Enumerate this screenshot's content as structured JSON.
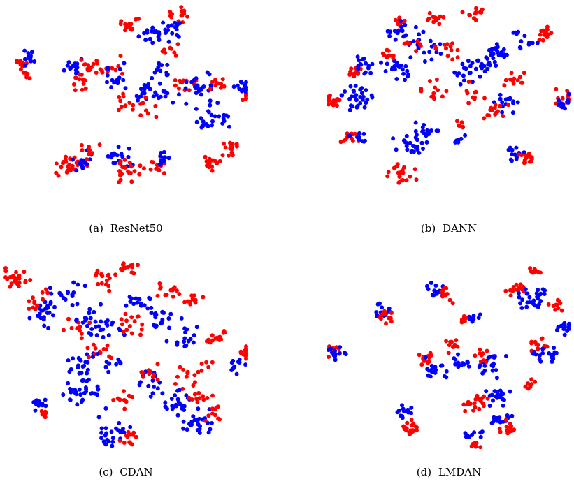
{
  "colors": {
    "source": "#ff0000",
    "target": "#0000ff"
  },
  "chart_data": [
    {
      "type": "scatter",
      "tag": "(a)",
      "title": "ResNet50",
      "clusters": [
        {
          "series": "red",
          "cx": 6,
          "cy": 30,
          "n": 10,
          "spread": 3
        },
        {
          "series": "red",
          "cx": 9,
          "cy": 35,
          "n": 8,
          "spread": 3
        },
        {
          "series": "blue",
          "cx": 10,
          "cy": 27,
          "n": 12,
          "spread": 3
        },
        {
          "series": "blue",
          "cx": 28,
          "cy": 32,
          "n": 18,
          "spread": 3
        },
        {
          "series": "red",
          "cx": 30,
          "cy": 40,
          "n": 12,
          "spread": 3
        },
        {
          "series": "red",
          "cx": 27,
          "cy": 84,
          "n": 25,
          "spread": 4
        },
        {
          "series": "blue",
          "cx": 33,
          "cy": 80,
          "n": 15,
          "spread": 4
        },
        {
          "series": "red",
          "cx": 34,
          "cy": 75,
          "n": 10,
          "spread": 4
        },
        {
          "series": "blue",
          "cx": 47,
          "cy": 80,
          "n": 18,
          "spread": 4
        },
        {
          "series": "red",
          "cx": 50,
          "cy": 88,
          "n": 20,
          "spread": 4
        },
        {
          "series": "red",
          "cx": 62,
          "cy": 84,
          "n": 12,
          "spread": 3
        },
        {
          "series": "blue",
          "cx": 65,
          "cy": 80,
          "n": 12,
          "spread": 3
        },
        {
          "series": "red",
          "cx": 35,
          "cy": 32,
          "n": 12,
          "spread": 3
        },
        {
          "series": "red",
          "cx": 44,
          "cy": 33,
          "n": 10,
          "spread": 4
        },
        {
          "series": "blue",
          "cx": 46,
          "cy": 38,
          "n": 15,
          "spread": 5
        },
        {
          "series": "red",
          "cx": 50,
          "cy": 50,
          "n": 10,
          "spread": 4
        },
        {
          "series": "blue",
          "cx": 60,
          "cy": 45,
          "n": 28,
          "spread": 6
        },
        {
          "series": "red",
          "cx": 58,
          "cy": 55,
          "n": 8,
          "spread": 5
        },
        {
          "series": "red",
          "cx": 52,
          "cy": 10,
          "n": 15,
          "spread": 3
        },
        {
          "series": "blue",
          "cx": 62,
          "cy": 15,
          "n": 20,
          "spread": 5
        },
        {
          "series": "red",
          "cx": 72,
          "cy": 5,
          "n": 15,
          "spread": 3
        },
        {
          "series": "blue",
          "cx": 70,
          "cy": 12,
          "n": 15,
          "spread": 3
        },
        {
          "series": "red",
          "cx": 70,
          "cy": 22,
          "n": 8,
          "spread": 3
        },
        {
          "series": "blue",
          "cx": 65,
          "cy": 35,
          "n": 10,
          "spread": 4
        },
        {
          "series": "red",
          "cx": 75,
          "cy": 40,
          "n": 15,
          "spread": 4
        },
        {
          "series": "blue",
          "cx": 80,
          "cy": 43,
          "n": 25,
          "spread": 5
        },
        {
          "series": "red",
          "cx": 88,
          "cy": 40,
          "n": 10,
          "spread": 3
        },
        {
          "series": "blue",
          "cx": 85,
          "cy": 58,
          "n": 28,
          "spread": 6
        },
        {
          "series": "red",
          "cx": 93,
          "cy": 74,
          "n": 15,
          "spread": 3
        },
        {
          "series": "red",
          "cx": 85,
          "cy": 82,
          "n": 15,
          "spread": 3
        },
        {
          "series": "red",
          "cx": 101,
          "cy": 45,
          "n": 15,
          "spread": 3
        },
        {
          "series": "blue",
          "cx": 98,
          "cy": 43,
          "n": 12,
          "spread": 3
        }
      ]
    },
    {
      "type": "scatter",
      "tag": "(b)",
      "title": "DANN",
      "clusters": [
        {
          "series": "red",
          "cx": 2,
          "cy": 50,
          "n": 20,
          "spread": 3
        },
        {
          "series": "blue",
          "cx": 12,
          "cy": 48,
          "n": 30,
          "spread": 5
        },
        {
          "series": "red",
          "cx": 12,
          "cy": 35,
          "n": 12,
          "spread": 3
        },
        {
          "series": "blue",
          "cx": 15,
          "cy": 30,
          "n": 15,
          "spread": 4
        },
        {
          "series": "red",
          "cx": 10,
          "cy": 68,
          "n": 15,
          "spread": 3
        },
        {
          "series": "blue",
          "cx": 12,
          "cy": 70,
          "n": 10,
          "spread": 3
        },
        {
          "series": "blue",
          "cx": 28,
          "cy": 33,
          "n": 20,
          "spread": 4
        },
        {
          "series": "red",
          "cx": 25,
          "cy": 25,
          "n": 10,
          "spread": 3
        },
        {
          "series": "red",
          "cx": 30,
          "cy": 8,
          "n": 10,
          "spread": 3
        },
        {
          "series": "blue",
          "cx": 30,
          "cy": 14,
          "n": 15,
          "spread": 4
        },
        {
          "series": "red",
          "cx": 45,
          "cy": 7,
          "n": 12,
          "spread": 3
        },
        {
          "series": "blue",
          "cx": 40,
          "cy": 22,
          "n": 20,
          "spread": 5
        },
        {
          "series": "red",
          "cx": 35,
          "cy": 20,
          "n": 8,
          "spread": 3
        },
        {
          "series": "red",
          "cx": 60,
          "cy": 5,
          "n": 12,
          "spread": 3
        },
        {
          "series": "red",
          "cx": 50,
          "cy": 24,
          "n": 12,
          "spread": 4
        },
        {
          "series": "blue",
          "cx": 58,
          "cy": 35,
          "n": 20,
          "spread": 5
        },
        {
          "series": "red",
          "cx": 45,
          "cy": 45,
          "n": 12,
          "spread": 5
        },
        {
          "series": "red",
          "cx": 60,
          "cy": 48,
          "n": 10,
          "spread": 5
        },
        {
          "series": "blue",
          "cx": 65,
          "cy": 30,
          "n": 15,
          "spread": 4
        },
        {
          "series": "blue",
          "cx": 35,
          "cy": 72,
          "n": 25,
          "spread": 5
        },
        {
          "series": "red",
          "cx": 30,
          "cy": 88,
          "n": 25,
          "spread": 4
        },
        {
          "series": "blue",
          "cx": 40,
          "cy": 65,
          "n": 15,
          "spread": 4
        },
        {
          "series": "red",
          "cx": 55,
          "cy": 62,
          "n": 6,
          "spread": 2
        },
        {
          "series": "blue",
          "cx": 55,
          "cy": 70,
          "n": 6,
          "spread": 2
        },
        {
          "series": "blue",
          "cx": 70,
          "cy": 25,
          "n": 20,
          "spread": 4
        },
        {
          "series": "red",
          "cx": 78,
          "cy": 38,
          "n": 12,
          "spread": 3
        },
        {
          "series": "red",
          "cx": 90,
          "cy": 15,
          "n": 15,
          "spread": 3
        },
        {
          "series": "blue",
          "cx": 82,
          "cy": 18,
          "n": 15,
          "spread": 4
        },
        {
          "series": "blue",
          "cx": 74,
          "cy": 50,
          "n": 15,
          "spread": 4
        },
        {
          "series": "red",
          "cx": 70,
          "cy": 55,
          "n": 15,
          "spread": 4
        },
        {
          "series": "blue",
          "cx": 78,
          "cy": 78,
          "n": 15,
          "spread": 3
        },
        {
          "series": "red",
          "cx": 83,
          "cy": 80,
          "n": 15,
          "spread": 3
        },
        {
          "series": "red",
          "cx": 97,
          "cy": 48,
          "n": 12,
          "spread": 3
        },
        {
          "series": "blue",
          "cx": 98,
          "cy": 50,
          "n": 10,
          "spread": 3
        }
      ]
    },
    {
      "type": "scatter",
      "tag": "(c)",
      "title": "CDAN",
      "clusters": [
        {
          "series": "red",
          "cx": 4,
          "cy": 10,
          "n": 25,
          "spread": 4
        },
        {
          "series": "blue",
          "cx": 17,
          "cy": 28,
          "n": 25,
          "spread": 5
        },
        {
          "series": "red",
          "cx": 13,
          "cy": 20,
          "n": 12,
          "spread": 4
        },
        {
          "series": "blue",
          "cx": 26,
          "cy": 18,
          "n": 15,
          "spread": 5
        },
        {
          "series": "red",
          "cx": 30,
          "cy": 35,
          "n": 12,
          "spread": 5
        },
        {
          "series": "blue",
          "cx": 35,
          "cy": 30,
          "n": 20,
          "spread": 6
        },
        {
          "series": "red",
          "cx": 42,
          "cy": 12,
          "n": 15,
          "spread": 4
        },
        {
          "series": "blue",
          "cx": 42,
          "cy": 38,
          "n": 15,
          "spread": 5
        },
        {
          "series": "red",
          "cx": 50,
          "cy": 5,
          "n": 15,
          "spread": 3
        },
        {
          "series": "blue",
          "cx": 55,
          "cy": 25,
          "n": 15,
          "spread": 5
        },
        {
          "series": "red",
          "cx": 52,
          "cy": 35,
          "n": 15,
          "spread": 5
        },
        {
          "series": "blue",
          "cx": 65,
          "cy": 30,
          "n": 20,
          "spread": 5
        },
        {
          "series": "red",
          "cx": 68,
          "cy": 15,
          "n": 12,
          "spread": 4
        },
        {
          "series": "red",
          "cx": 78,
          "cy": 22,
          "n": 12,
          "spread": 4
        },
        {
          "series": "blue",
          "cx": 75,
          "cy": 40,
          "n": 15,
          "spread": 5
        },
        {
          "series": "red",
          "cx": 88,
          "cy": 40,
          "n": 15,
          "spread": 4
        },
        {
          "series": "red",
          "cx": 100,
          "cy": 48,
          "n": 15,
          "spread": 3
        },
        {
          "series": "blue",
          "cx": 96,
          "cy": 55,
          "n": 12,
          "spread": 3
        },
        {
          "series": "blue",
          "cx": 30,
          "cy": 55,
          "n": 20,
          "spread": 5
        },
        {
          "series": "red",
          "cx": 38,
          "cy": 48,
          "n": 12,
          "spread": 4
        },
        {
          "series": "blue",
          "cx": 42,
          "cy": 55,
          "n": 12,
          "spread": 4
        },
        {
          "series": "blue",
          "cx": 32,
          "cy": 70,
          "n": 30,
          "spread": 6
        },
        {
          "series": "red",
          "cx": 48,
          "cy": 72,
          "n": 10,
          "spread": 4
        },
        {
          "series": "blue",
          "cx": 14,
          "cy": 75,
          "n": 12,
          "spread": 3
        },
        {
          "series": "red",
          "cx": 16,
          "cy": 80,
          "n": 6,
          "spread": 2
        },
        {
          "series": "blue",
          "cx": 45,
          "cy": 90,
          "n": 25,
          "spread": 5
        },
        {
          "series": "red",
          "cx": 52,
          "cy": 93,
          "n": 12,
          "spread": 3
        },
        {
          "series": "blue",
          "cx": 62,
          "cy": 65,
          "n": 15,
          "spread": 5
        },
        {
          "series": "red",
          "cx": 60,
          "cy": 60,
          "n": 10,
          "spread": 4
        },
        {
          "series": "red",
          "cx": 75,
          "cy": 62,
          "n": 12,
          "spread": 4
        },
        {
          "series": "blue",
          "cx": 72,
          "cy": 75,
          "n": 25,
          "spread": 5
        },
        {
          "series": "red",
          "cx": 82,
          "cy": 70,
          "n": 12,
          "spread": 4
        },
        {
          "series": "blue",
          "cx": 80,
          "cy": 85,
          "n": 25,
          "spread": 5
        },
        {
          "series": "red",
          "cx": 88,
          "cy": 80,
          "n": 10,
          "spread": 4
        },
        {
          "series": "red",
          "cx": 82,
          "cy": 55,
          "n": 6,
          "spread": 3
        }
      ]
    },
    {
      "type": "scatter",
      "tag": "(d)",
      "title": "LMDAN",
      "clusters": [
        {
          "series": "red",
          "cx": 2,
          "cy": 47,
          "n": 12,
          "spread": 3
        },
        {
          "series": "blue",
          "cx": 4,
          "cy": 49,
          "n": 12,
          "spread": 3
        },
        {
          "series": "blue",
          "cx": 22,
          "cy": 27,
          "n": 15,
          "spread": 3
        },
        {
          "series": "red",
          "cx": 23,
          "cy": 30,
          "n": 12,
          "spread": 3
        },
        {
          "series": "blue",
          "cx": 45,
          "cy": 16,
          "n": 15,
          "spread": 3
        },
        {
          "series": "red",
          "cx": 48,
          "cy": 18,
          "n": 12,
          "spread": 3
        },
        {
          "series": "blue",
          "cx": 60,
          "cy": 31,
          "n": 10,
          "spread": 2
        },
        {
          "series": "red",
          "cx": 57,
          "cy": 31,
          "n": 8,
          "spread": 2
        },
        {
          "series": "red",
          "cx": 78,
          "cy": 15,
          "n": 15,
          "spread": 3
        },
        {
          "series": "blue",
          "cx": 85,
          "cy": 20,
          "n": 30,
          "spread": 5
        },
        {
          "series": "red",
          "cx": 86,
          "cy": 6,
          "n": 10,
          "spread": 2
        },
        {
          "series": "red",
          "cx": 95,
          "cy": 25,
          "n": 10,
          "spread": 3
        },
        {
          "series": "blue",
          "cx": 98,
          "cy": 36,
          "n": 15,
          "spread": 3
        },
        {
          "series": "red",
          "cx": 88,
          "cy": 45,
          "n": 15,
          "spread": 3
        },
        {
          "series": "blue",
          "cx": 90,
          "cy": 50,
          "n": 20,
          "spread": 4
        },
        {
          "series": "red",
          "cx": 84,
          "cy": 64,
          "n": 8,
          "spread": 2
        },
        {
          "series": "red",
          "cx": 41,
          "cy": 52,
          "n": 15,
          "spread": 3
        },
        {
          "series": "blue",
          "cx": 44,
          "cy": 57,
          "n": 20,
          "spread": 4
        },
        {
          "series": "red",
          "cx": 52,
          "cy": 45,
          "n": 10,
          "spread": 3
        },
        {
          "series": "blue",
          "cx": 56,
          "cy": 53,
          "n": 12,
          "spread": 3
        },
        {
          "series": "blue",
          "cx": 67,
          "cy": 55,
          "n": 20,
          "spread": 4
        },
        {
          "series": "red",
          "cx": 64,
          "cy": 50,
          "n": 10,
          "spread": 3
        },
        {
          "series": "red",
          "cx": 61,
          "cy": 75,
          "n": 20,
          "spread": 4
        },
        {
          "series": "blue",
          "cx": 70,
          "cy": 72,
          "n": 20,
          "spread": 4
        },
        {
          "series": "blue",
          "cx": 72,
          "cy": 84,
          "n": 15,
          "spread": 3
        },
        {
          "series": "red",
          "cx": 74,
          "cy": 88,
          "n": 12,
          "spread": 3
        },
        {
          "series": "blue",
          "cx": 32,
          "cy": 80,
          "n": 15,
          "spread": 3
        },
        {
          "series": "red",
          "cx": 34,
          "cy": 88,
          "n": 20,
          "spread": 3
        },
        {
          "series": "blue",
          "cx": 60,
          "cy": 92,
          "n": 10,
          "spread": 3
        },
        {
          "series": "red",
          "cx": 61,
          "cy": 96,
          "n": 8,
          "spread": 2
        }
      ]
    }
  ]
}
